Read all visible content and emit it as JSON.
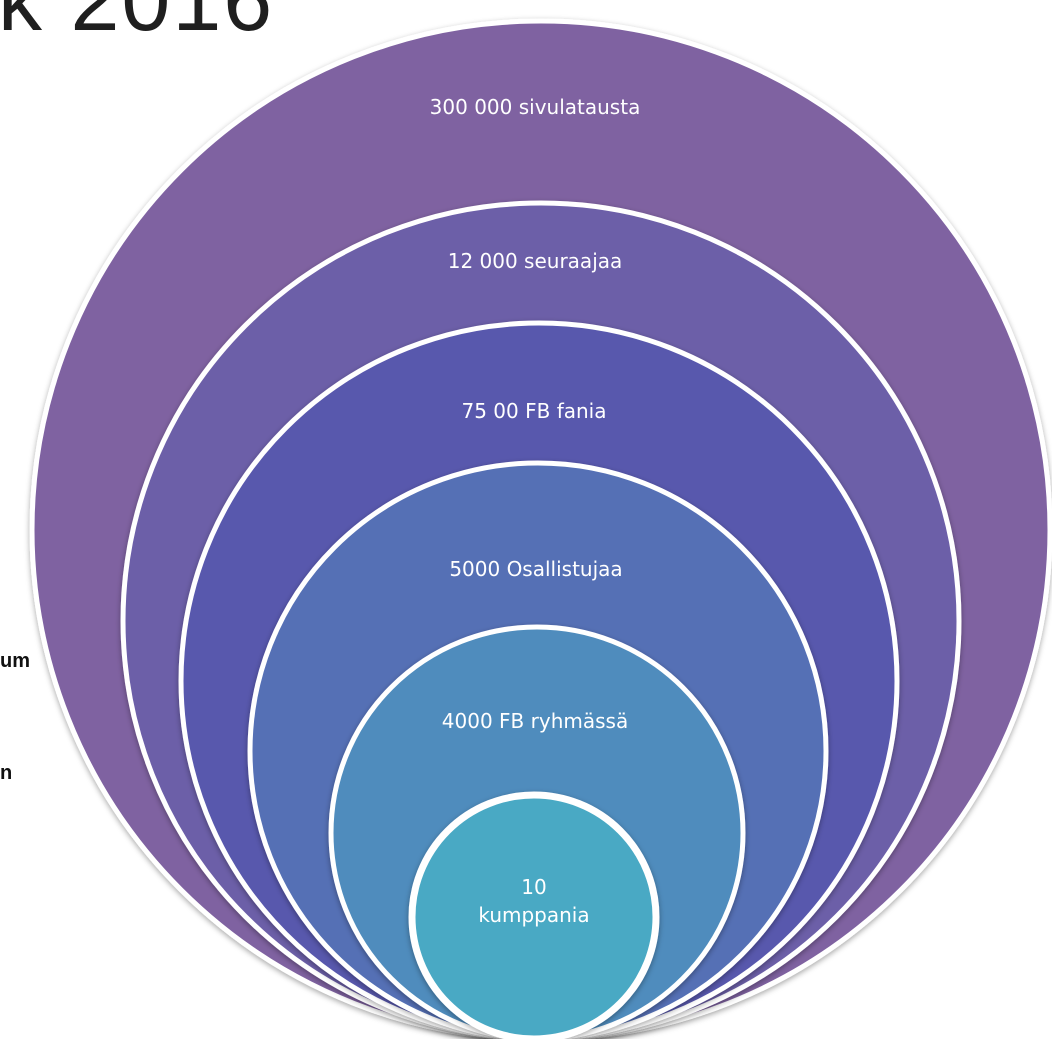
{
  "title_fragment": "k 2016",
  "side_fragments": [
    "um",
    "n"
  ],
  "diagram": {
    "type": "nested-circles",
    "rings": [
      {
        "label": "300 000 sivulatausta",
        "color": "#7f62a1"
      },
      {
        "label": "12 000 seuraajaa",
        "color": "#6c5ea8"
      },
      {
        "label": "75 00 FB fania",
        "color": "#5958ad"
      },
      {
        "label": "5000 Osallistujaa",
        "color": "#5470b5"
      },
      {
        "label": "4000 FB ryhmässä",
        "color": "#4f8cbd"
      },
      {
        "label_lines": [
          "10",
          "kumppania"
        ],
        "color": "#49a9c4"
      }
    ]
  }
}
